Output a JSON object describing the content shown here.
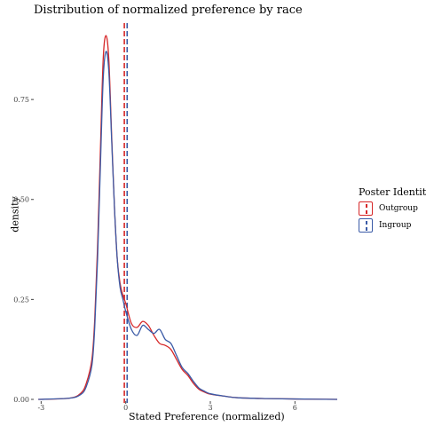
{
  "chart_data": {
    "type": "line",
    "title": "Distribution of normalized preference by race",
    "xlabel": "Stated Preference (normalized)",
    "ylabel": "density",
    "xlim": [
      -3.2,
      7.5
    ],
    "ylim": [
      0,
      0.95
    ],
    "xticks": [
      -3,
      0,
      3,
      6
    ],
    "xtick_labels": [
      "-3",
      "0",
      "3",
      "6"
    ],
    "yticks": [
      0,
      0.25,
      0.5,
      0.75
    ],
    "ytick_labels": [
      "0.00",
      "0.25",
      "0.50",
      "0.75"
    ],
    "legend_title": "Poster Identity",
    "legend_position": "right",
    "series": [
      {
        "name": "Outgroup",
        "color": "#d62728",
        "mean": -0.05,
        "x": [
          -3.1,
          -2.0,
          -1.6,
          -1.4,
          -1.2,
          -1.1,
          -1.0,
          -0.9,
          -0.8,
          -0.7,
          -0.6,
          -0.5,
          -0.4,
          -0.3,
          -0.2,
          -0.1,
          0.0,
          0.2,
          0.4,
          0.6,
          0.8,
          1.0,
          1.2,
          1.4,
          1.6,
          1.8,
          2.0,
          2.2,
          2.4,
          2.6,
          2.8,
          3.0,
          3.5,
          4.0,
          5.0,
          6.0,
          7.5
        ],
        "y": [
          0.0,
          0.003,
          0.015,
          0.04,
          0.1,
          0.2,
          0.38,
          0.62,
          0.85,
          0.91,
          0.85,
          0.66,
          0.48,
          0.35,
          0.29,
          0.26,
          0.24,
          0.19,
          0.18,
          0.195,
          0.185,
          0.16,
          0.14,
          0.135,
          0.125,
          0.1,
          0.075,
          0.06,
          0.04,
          0.025,
          0.018,
          0.013,
          0.008,
          0.004,
          0.002,
          0.001,
          0.0
        ]
      },
      {
        "name": "Ingroup",
        "color": "#3a5aa6",
        "mean": 0.05,
        "x": [
          -3.1,
          -2.0,
          -1.6,
          -1.4,
          -1.2,
          -1.1,
          -1.0,
          -0.9,
          -0.8,
          -0.7,
          -0.6,
          -0.5,
          -0.4,
          -0.3,
          -0.2,
          -0.1,
          0.0,
          0.2,
          0.4,
          0.6,
          0.8,
          1.0,
          1.2,
          1.4,
          1.6,
          1.8,
          2.0,
          2.2,
          2.4,
          2.6,
          2.8,
          3.0,
          3.5,
          4.0,
          5.0,
          6.0,
          7.5
        ],
        "y": [
          0.0,
          0.003,
          0.012,
          0.032,
          0.085,
          0.18,
          0.35,
          0.58,
          0.8,
          0.87,
          0.82,
          0.65,
          0.48,
          0.35,
          0.28,
          0.25,
          0.22,
          0.175,
          0.16,
          0.185,
          0.175,
          0.165,
          0.175,
          0.15,
          0.14,
          0.11,
          0.08,
          0.065,
          0.045,
          0.028,
          0.02,
          0.014,
          0.008,
          0.004,
          0.002,
          0.001,
          0.0
        ]
      }
    ]
  }
}
